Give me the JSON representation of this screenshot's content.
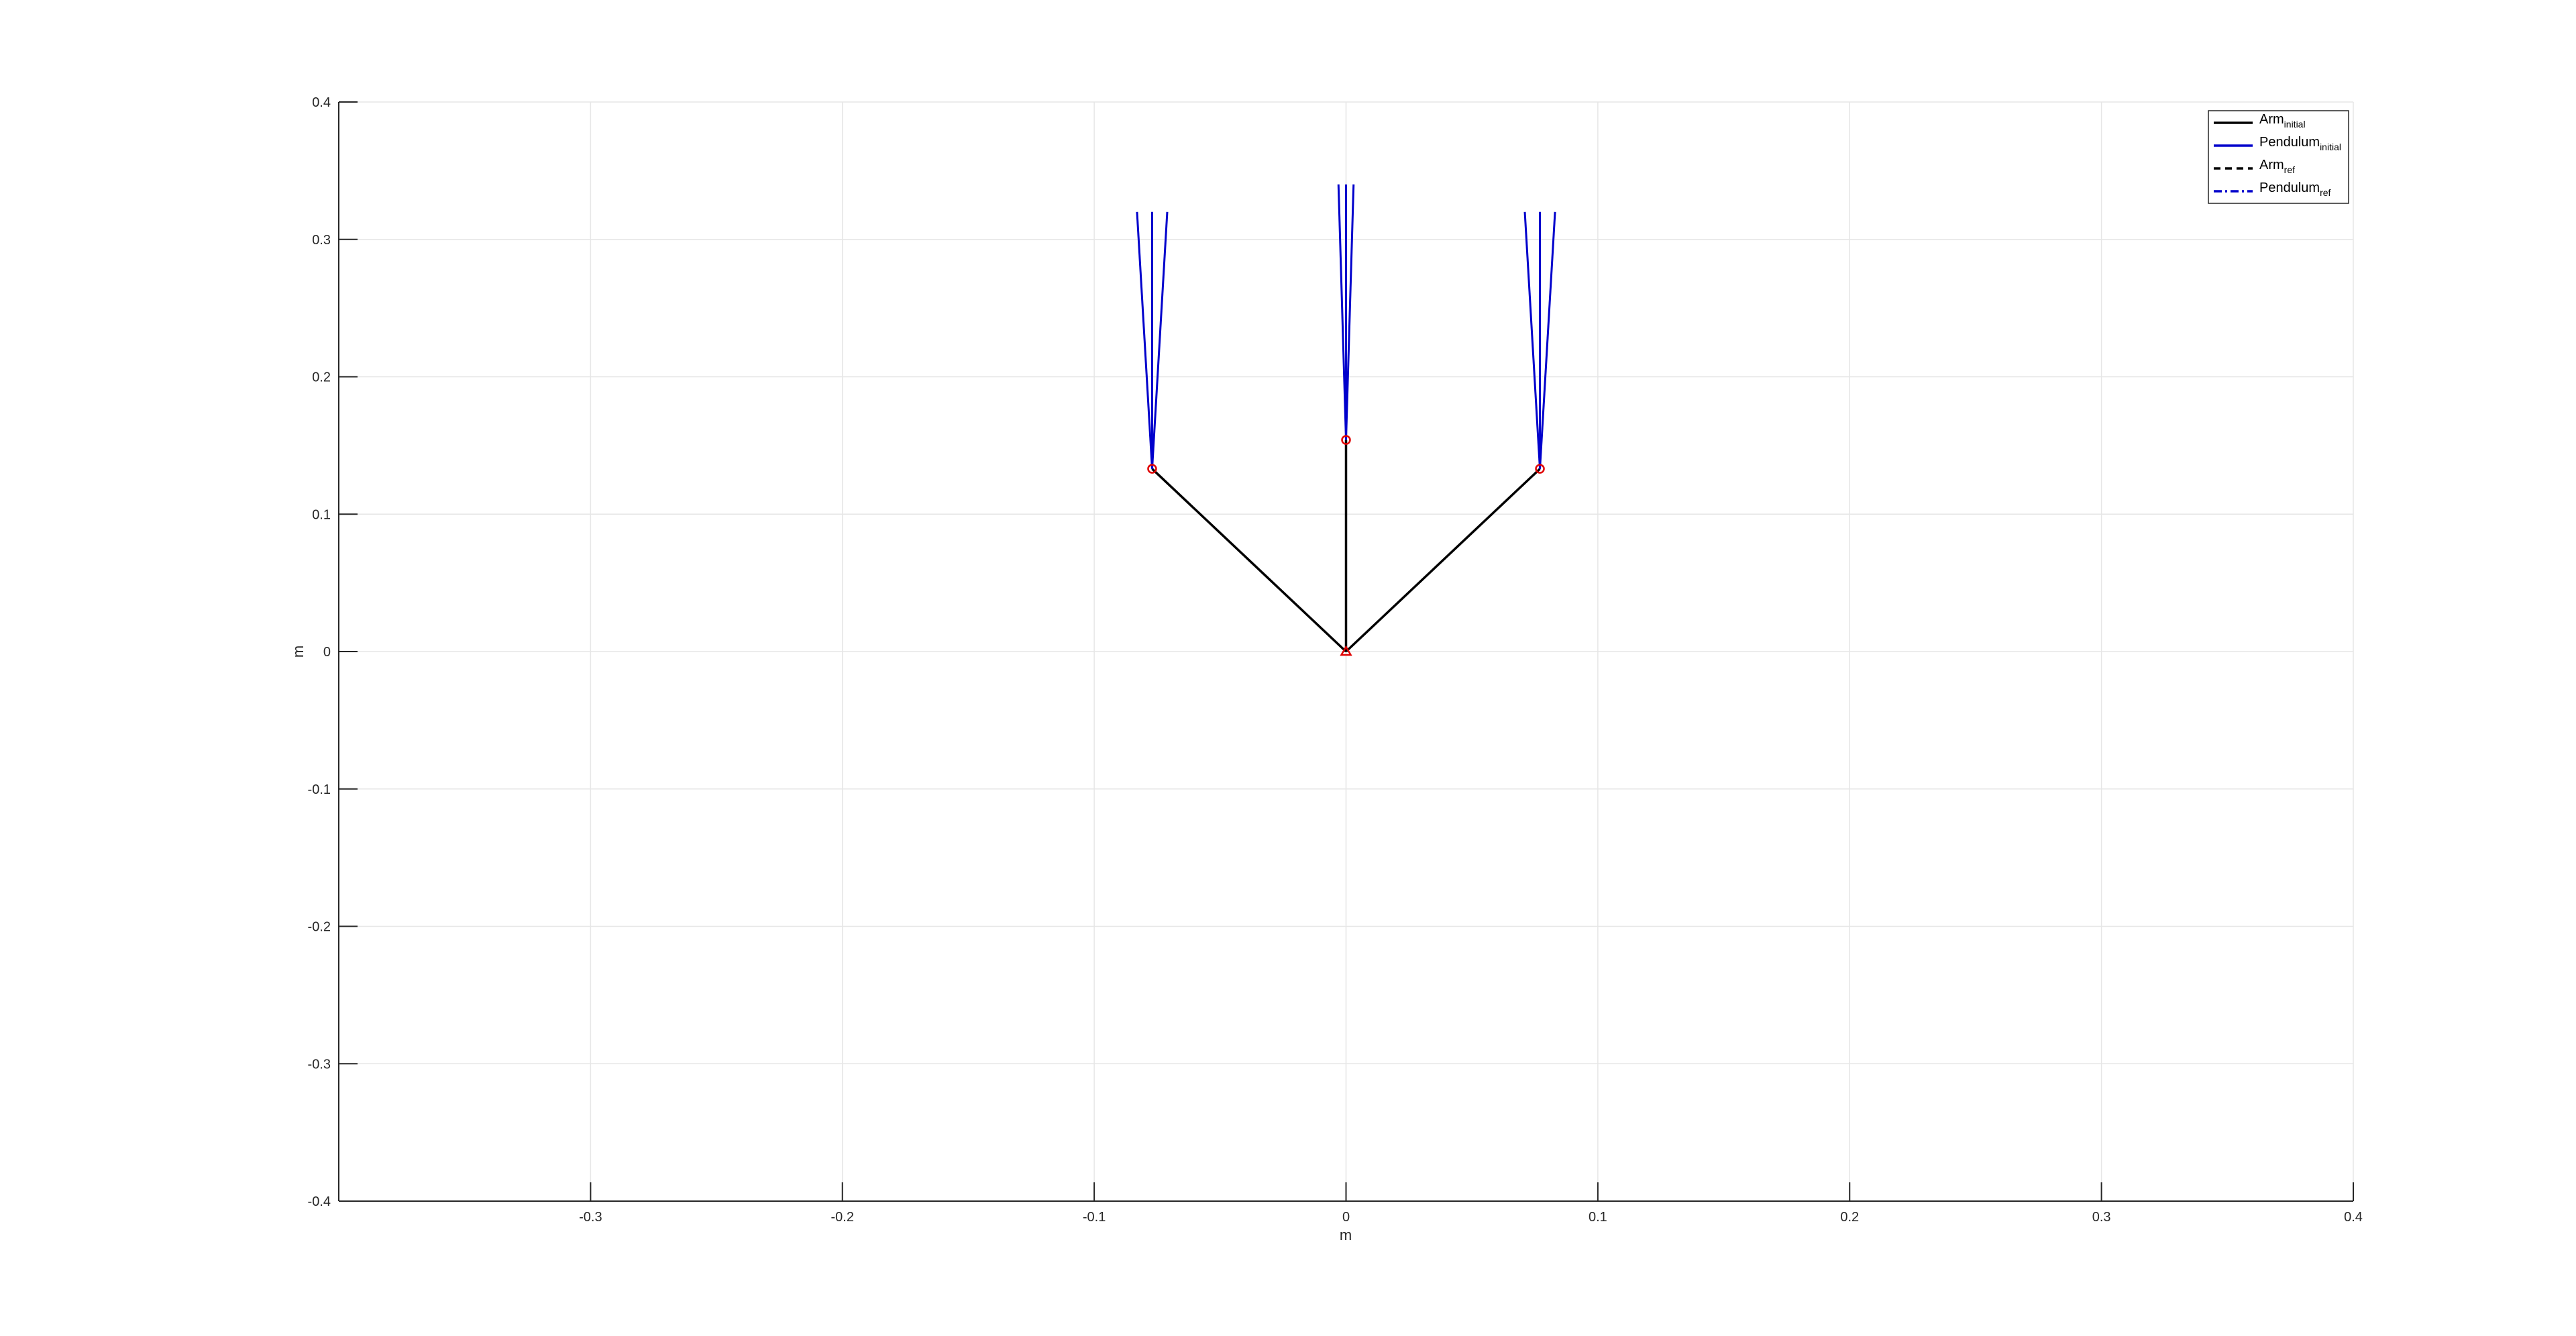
{
  "chart_data": {
    "type": "line",
    "title": "",
    "xlabel": "m",
    "ylabel": "m",
    "xlim": [
      -0.4,
      0.4
    ],
    "ylim": [
      -0.4,
      0.4
    ],
    "grid": true,
    "legend_placement": "top-right",
    "x_ticks": [
      {
        "value": -0.3,
        "label": "-0.3"
      },
      {
        "value": -0.2,
        "label": "-0.2"
      },
      {
        "value": -0.1,
        "label": "-0.1"
      },
      {
        "value": 0,
        "label": "0"
      },
      {
        "value": 0.1,
        "label": "0.1"
      },
      {
        "value": 0.2,
        "label": "0.2"
      },
      {
        "value": 0.3,
        "label": "0.3"
      },
      {
        "value": 0.4,
        "label": "0.4"
      }
    ],
    "y_ticks": [
      {
        "value": -0.4,
        "label": "-0.4"
      },
      {
        "value": -0.3,
        "label": "-0.3"
      },
      {
        "value": -0.2,
        "label": "-0.2"
      },
      {
        "value": -0.1,
        "label": "-0.1"
      },
      {
        "value": 0,
        "label": "0"
      },
      {
        "value": 0.1,
        "label": "0.1"
      },
      {
        "value": 0.2,
        "label": "0.2"
      },
      {
        "value": 0.3,
        "label": "0.3"
      },
      {
        "value": 0.4,
        "label": "0.4"
      }
    ],
    "legend": [
      {
        "name": "Arm",
        "sub": "initial",
        "color": "#000000",
        "style": "solid"
      },
      {
        "name": "Pendulum",
        "sub": "initial",
        "color": "#0000cc",
        "style": "solid"
      },
      {
        "name": "Arm",
        "sub": "ref",
        "color": "#000000",
        "style": "dashed"
      },
      {
        "name": "Pendulum",
        "sub": "ref",
        "color": "#0000cc",
        "style": "dashdot"
      }
    ],
    "series": [
      {
        "kind": "arm",
        "color": "#000000",
        "points": [
          [
            0,
            0
          ],
          [
            -0.077,
            0.133
          ]
        ]
      },
      {
        "kind": "arm",
        "color": "#000000",
        "points": [
          [
            0,
            0
          ],
          [
            0,
            0.154
          ]
        ]
      },
      {
        "kind": "arm",
        "color": "#000000",
        "points": [
          [
            0,
            0
          ],
          [
            0.077,
            0.133
          ]
        ]
      },
      {
        "kind": "pendulum",
        "color": "#0000cc",
        "points": [
          [
            -0.077,
            0.133
          ],
          [
            -0.083,
            0.32
          ]
        ]
      },
      {
        "kind": "pendulum",
        "color": "#0000cc",
        "points": [
          [
            -0.077,
            0.133
          ],
          [
            -0.077,
            0.32
          ]
        ]
      },
      {
        "kind": "pendulum",
        "color": "#0000cc",
        "points": [
          [
            -0.077,
            0.133
          ],
          [
            -0.071,
            0.32
          ]
        ]
      },
      {
        "kind": "pendulum",
        "color": "#0000cc",
        "points": [
          [
            0,
            0.154
          ],
          [
            -0.003,
            0.34
          ]
        ]
      },
      {
        "kind": "pendulum",
        "color": "#0000cc",
        "points": [
          [
            0,
            0.154
          ],
          [
            0,
            0.34
          ]
        ]
      },
      {
        "kind": "pendulum",
        "color": "#0000cc",
        "points": [
          [
            0,
            0.154
          ],
          [
            0.003,
            0.34
          ]
        ]
      },
      {
        "kind": "pendulum",
        "color": "#0000cc",
        "points": [
          [
            0.077,
            0.133
          ],
          [
            0.071,
            0.32
          ]
        ]
      },
      {
        "kind": "pendulum",
        "color": "#0000cc",
        "points": [
          [
            0.077,
            0.133
          ],
          [
            0.077,
            0.32
          ]
        ]
      },
      {
        "kind": "pendulum",
        "color": "#0000cc",
        "points": [
          [
            0.077,
            0.133
          ],
          [
            0.083,
            0.32
          ]
        ]
      }
    ],
    "markers": [
      {
        "x": -0.077,
        "y": 0.133,
        "shape": "circle",
        "color": "#e00000"
      },
      {
        "x": 0,
        "y": 0.154,
        "shape": "circle",
        "color": "#e00000"
      },
      {
        "x": 0.077,
        "y": 0.133,
        "shape": "circle",
        "color": "#e00000"
      },
      {
        "x": 0,
        "y": 0,
        "shape": "triangle",
        "color": "#e00000"
      }
    ]
  }
}
